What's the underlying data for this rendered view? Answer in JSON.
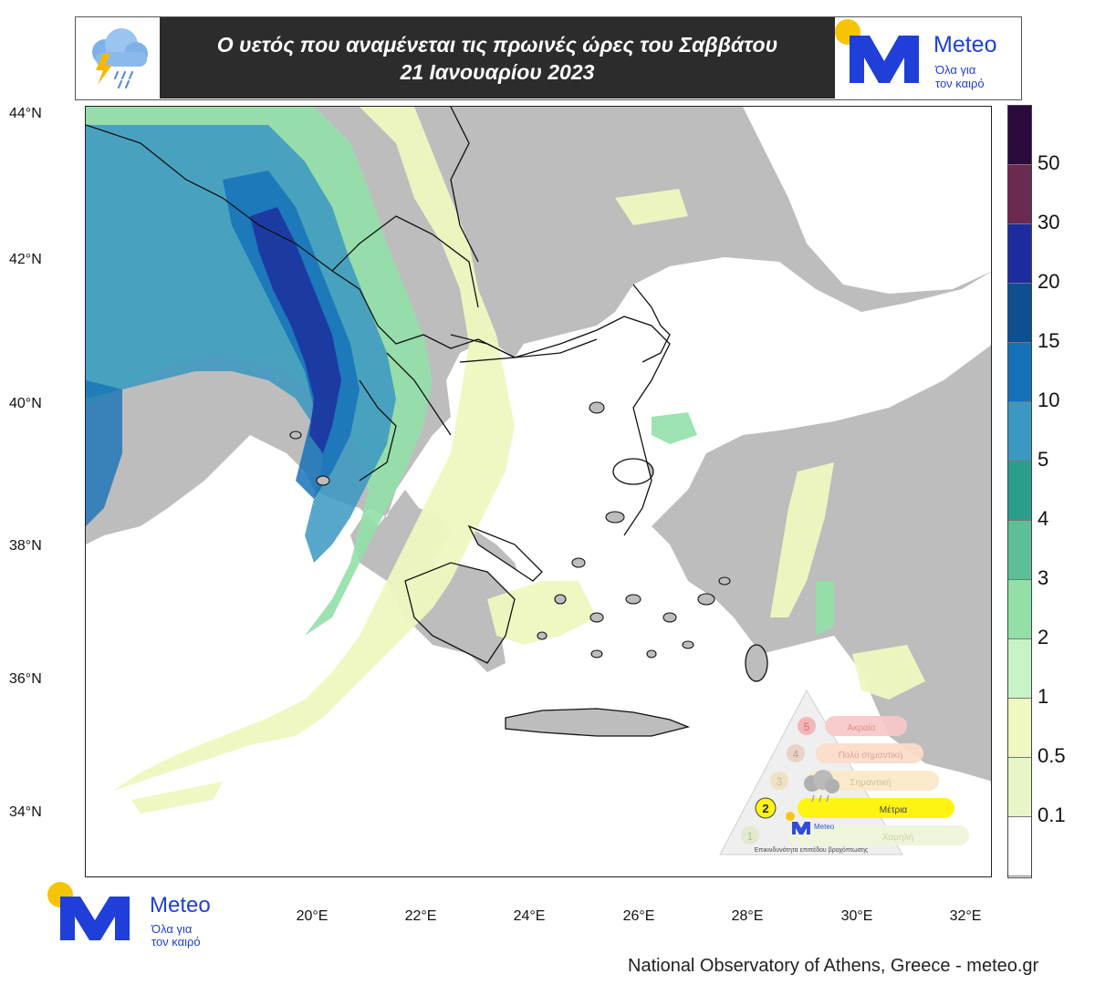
{
  "header": {
    "title_line1": "Ο υετός που αναμένεται τις πρωινές ώρες του Σαββάτου",
    "title_line2": "21 Ιανουαρίου 2023",
    "weather_icon": "rain-thunder-cloud-icon"
  },
  "logo": {
    "name": "Meteo",
    "tagline_line1": "Όλα για",
    "tagline_line2": "τον καιρό",
    "brand_color": "#1f3fd8",
    "sun_color": "#f6c400"
  },
  "axes": {
    "lat_labels": [
      "44°N",
      "42°N",
      "40°N",
      "38°N",
      "36°N",
      "34°N"
    ],
    "lon_labels": [
      "20°E",
      "22°E",
      "24°E",
      "26°E",
      "28°E",
      "30°E",
      "32°E"
    ]
  },
  "legend": {
    "unit": "",
    "levels": [
      {
        "label": "",
        "color": "#2b0a3d"
      },
      {
        "label": "50",
        "color": "#6b2a52"
      },
      {
        "label": "30",
        "color": "#1c2c9e"
      },
      {
        "label": "20",
        "color": "#0e4f8f"
      },
      {
        "label": "15",
        "color": "#1672b8"
      },
      {
        "label": "10",
        "color": "#3a98c2"
      },
      {
        "label": "5",
        "color": "#2a9e8a"
      },
      {
        "label": "4",
        "color": "#5cbf95"
      },
      {
        "label": "3",
        "color": "#92e0a8"
      },
      {
        "label": "2",
        "color": "#c8f3c8"
      },
      {
        "label": "1",
        "color": "#eef8c0"
      },
      {
        "label": "0.5",
        "color": "#e9f5c6"
      },
      {
        "label": "0.1",
        "color": "#ffffff"
      }
    ]
  },
  "map": {
    "land_color": "#bdbdbd",
    "sea_color": "#ffffff"
  },
  "warning_badge": {
    "levels": [
      {
        "num": "5",
        "label": "Ακραία"
      },
      {
        "num": "4",
        "label": "Πολύ σημαντική"
      },
      {
        "num": "3",
        "label": "Σημαντική"
      },
      {
        "num": "2",
        "label": "Μέτρια"
      },
      {
        "num": "1",
        "label": "Χαμηλή"
      }
    ],
    "active_level": 2,
    "footer": "Επικινδυνότητα επιπέδου βροχόπτωσης",
    "logo_name": "Meteo"
  },
  "credit": "National Observatory of Athens, Greece - meteo.gr"
}
